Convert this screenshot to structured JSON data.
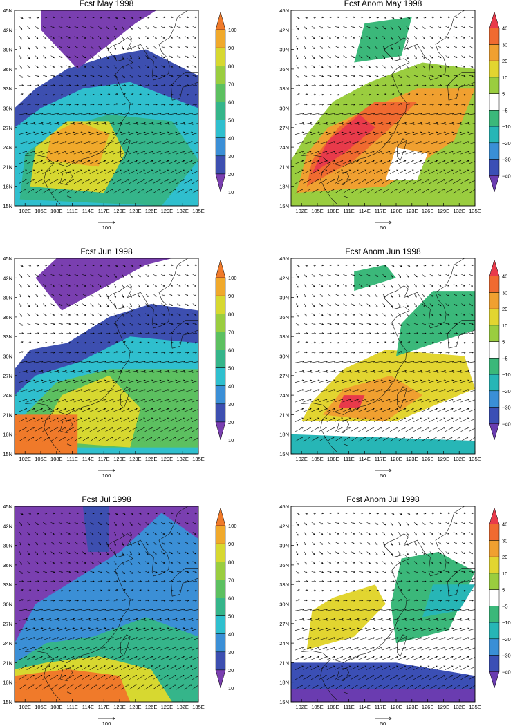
{
  "lat_labels": [
    "45N",
    "42N",
    "39N",
    "36N",
    "33N",
    "30N",
    "27N",
    "24N",
    "21N",
    "18N",
    "15N"
  ],
  "lon_labels": [
    "102E",
    "105E",
    "108E",
    "111E",
    "114E",
    "117E",
    "120E",
    "123E",
    "126E",
    "129E",
    "132E",
    "135E"
  ],
  "panels": [
    {
      "title": "Fcst May 1998",
      "kind": "total",
      "month": "May",
      "ref_vector": "100",
      "colorbar_labels": [
        "100",
        "90",
        "80",
        "70",
        "60",
        "50",
        "40",
        "30",
        "20",
        "10"
      ]
    },
    {
      "title": "Fcst Anom May 1998",
      "kind": "anom",
      "month": "May",
      "ref_vector": "50",
      "colorbar_labels": [
        "40",
        "30",
        "20",
        "10",
        "5",
        "−5",
        "−10",
        "−20",
        "−30",
        "−40"
      ]
    },
    {
      "title": "Fcst Jun 1998",
      "kind": "total",
      "month": "Jun",
      "ref_vector": "100",
      "colorbar_labels": [
        "100",
        "90",
        "80",
        "70",
        "60",
        "50",
        "40",
        "30",
        "20",
        "10"
      ]
    },
    {
      "title": "Fcst Anom Jun 1998",
      "kind": "anom",
      "month": "Jun",
      "ref_vector": "50",
      "colorbar_labels": [
        "40",
        "30",
        "20",
        "10",
        "5",
        "−5",
        "−10",
        "−20",
        "−30",
        "−40"
      ]
    },
    {
      "title": "Fcst Jul 1998",
      "kind": "total",
      "month": "Jul",
      "ref_vector": "100",
      "colorbar_labels": [
        "100",
        "90",
        "80",
        "70",
        "60",
        "50",
        "40",
        "30",
        "20",
        "10"
      ]
    },
    {
      "title": "Fcst Anom Jul 1998",
      "kind": "anom",
      "month": "Jul",
      "ref_vector": "50",
      "colorbar_labels": [
        "40",
        "30",
        "20",
        "10",
        "5",
        "−5",
        "−10",
        "−20",
        "−30",
        "−40"
      ]
    }
  ],
  "colors": {
    "total_scale": [
      "#7a3fb0",
      "#3d4fb0",
      "#3b8fd6",
      "#2fbfce",
      "#35b58a",
      "#5cc060",
      "#9acd3f",
      "#d7d830",
      "#f0a92b",
      "#f07a2a"
    ],
    "anom_scale": [
      "#6a3cb0",
      "#3b4fb5",
      "#3a8fd6",
      "#27b6b6",
      "#3bb87a",
      "#ffffff",
      "#9acd3f",
      "#e2d530",
      "#f0a030",
      "#f06a30",
      "#e83a4a"
    ]
  }
}
